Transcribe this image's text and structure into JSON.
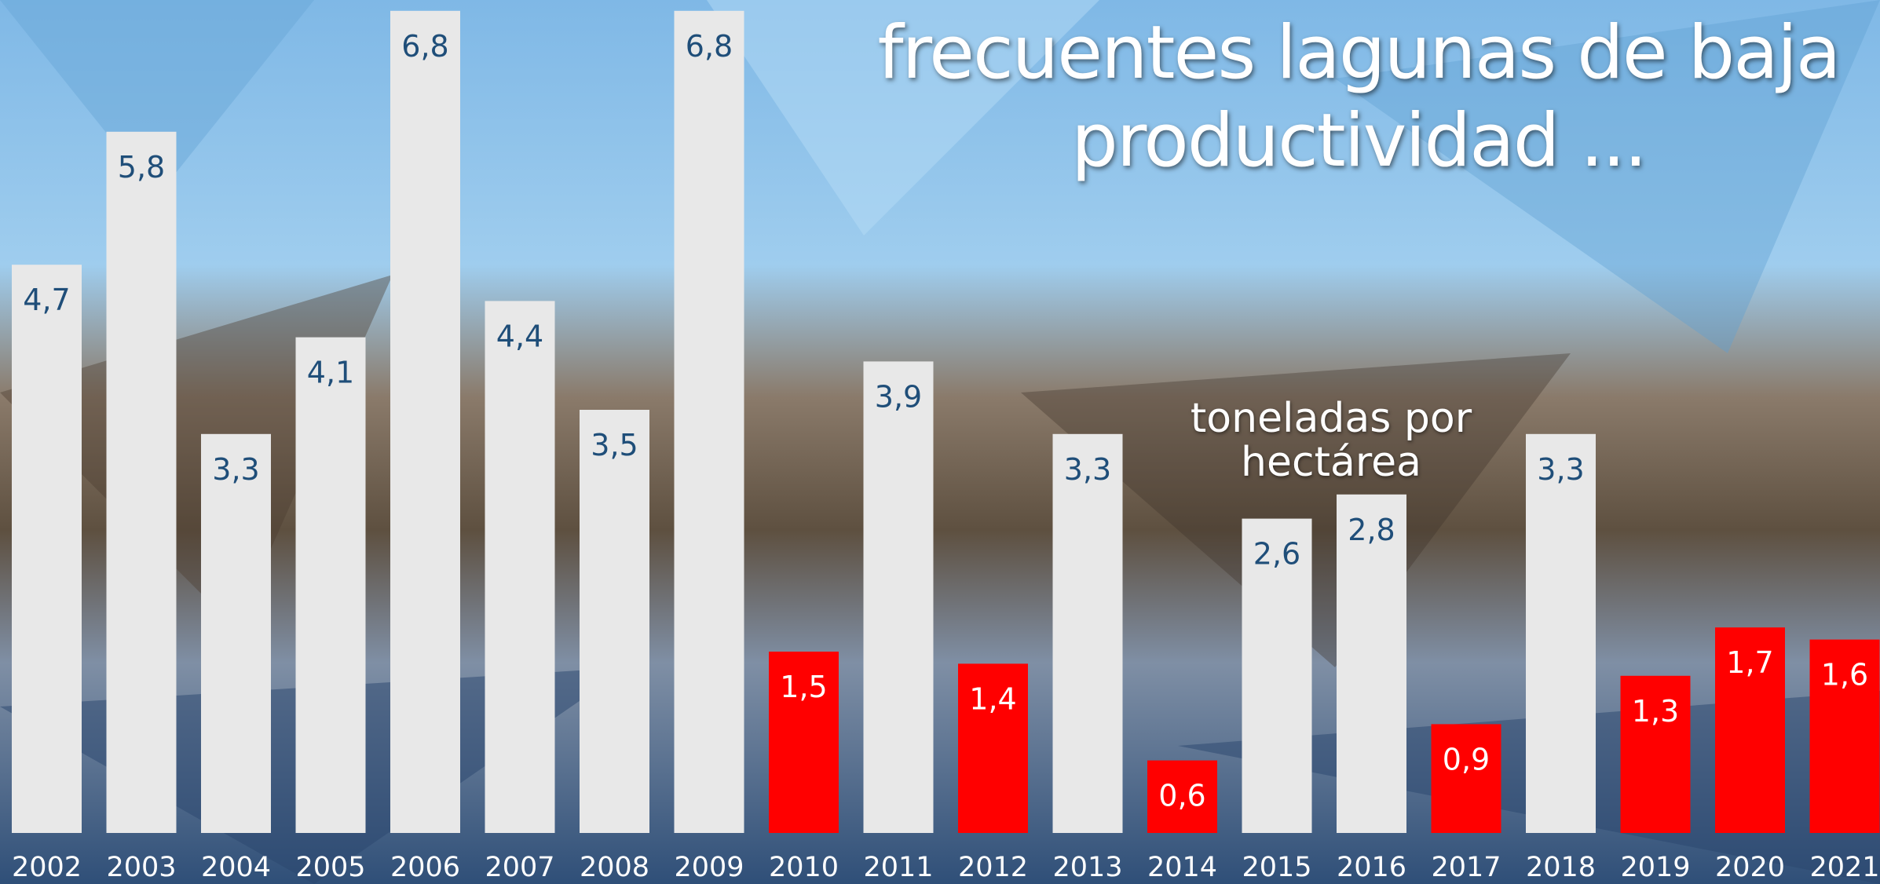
{
  "chart_data": {
    "type": "bar",
    "title": "frecuentes lagunas de baja productividad ...",
    "annotation": "toneladas por hectárea",
    "categories": [
      "2002",
      "2003",
      "2004",
      "2005",
      "2006",
      "2007",
      "2008",
      "2009",
      "2010",
      "2011",
      "2012",
      "2013",
      "2014",
      "2015",
      "2016",
      "2017",
      "2018",
      "2019",
      "2020",
      "2021"
    ],
    "values": [
      4.7,
      5.8,
      3.3,
      4.1,
      6.8,
      4.4,
      3.5,
      6.8,
      1.5,
      3.9,
      1.4,
      3.3,
      0.6,
      2.6,
      2.8,
      0.9,
      3.3,
      1.3,
      1.7,
      1.6
    ],
    "value_labels": [
      "4,7",
      "5,8",
      "3,3",
      "4,1",
      "6,8",
      "4,4",
      "3,5",
      "6,8",
      "1,5",
      "3,9",
      "1,4",
      "3,3",
      "0,6",
      "2,6",
      "2,8",
      "0,9",
      "3,3",
      "1,3",
      "1,7",
      "1,6"
    ],
    "colors": [
      "#e8e8e8",
      "#e8e8e8",
      "#e8e8e8",
      "#e8e8e8",
      "#e8e8e8",
      "#e8e8e8",
      "#e8e8e8",
      "#e8e8e8",
      "#ff0000",
      "#e8e8e8",
      "#ff0000",
      "#e8e8e8",
      "#ff0000",
      "#e8e8e8",
      "#e8e8e8",
      "#ff0000",
      "#e8e8e8",
      "#ff0000",
      "#ff0000",
      "#ff0000"
    ],
    "label_colors": [
      "#1f4e79",
      "#1f4e79",
      "#1f4e79",
      "#1f4e79",
      "#1f4e79",
      "#1f4e79",
      "#1f4e79",
      "#1f4e79",
      "#ffffff",
      "#1f4e79",
      "#ffffff",
      "#1f4e79",
      "#ffffff",
      "#1f4e79",
      "#1f4e79",
      "#ffffff",
      "#1f4e79",
      "#ffffff",
      "#ffffff",
      "#ffffff"
    ]
  }
}
